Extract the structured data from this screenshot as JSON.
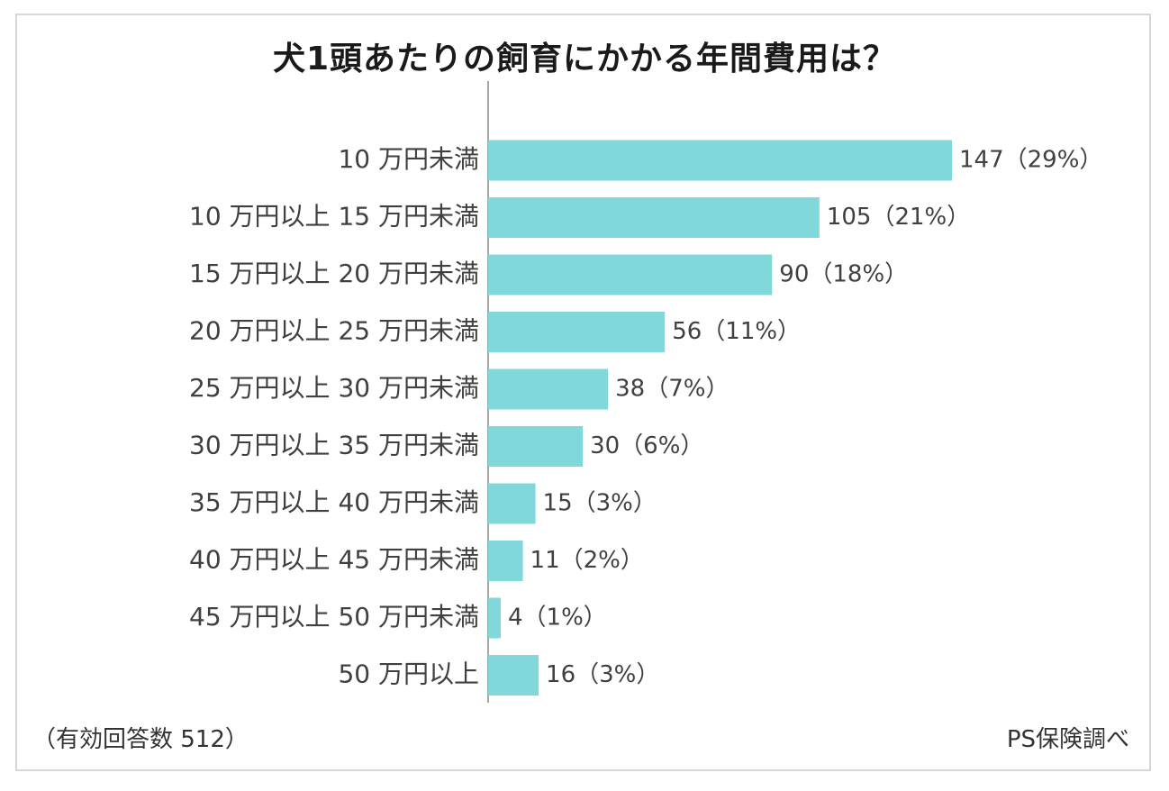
{
  "title": "犬1頭あたりの飼育にかかる年間費用は？",
  "footnote": "（有効回答数 512）",
  "source": "PS保険調べ",
  "colors": {
    "bar": "#80d8db",
    "axis": "#888888",
    "text": "#404040"
  },
  "chart_data": {
    "type": "bar",
    "orientation": "horizontal",
    "title": "犬1頭あたりの飼育にかかる年間費用は？",
    "categories": [
      "10 万円未満",
      "10 万円以上 15 万円未満",
      "15 万円以上 20 万円未満",
      "20 万円以上 25 万円未満",
      "25 万円以上 30 万円未満",
      "30 万円以上 35 万円未満",
      "35 万円以上 40 万円未満",
      "40 万円以上 45 万円未満",
      "45 万円以上 50 万円未満",
      "50 万円以上"
    ],
    "values": [
      147,
      105,
      90,
      56,
      38,
      30,
      15,
      11,
      4,
      16
    ],
    "percentages": [
      "29%",
      "21%",
      "18%",
      "11%",
      "7%",
      "6%",
      "3%",
      "2%",
      "1%",
      "3%"
    ],
    "value_labels": [
      "147（29%）",
      "105（21%）",
      "90（18%）",
      "56（11%）",
      "38（7%）",
      "30（6%）",
      "15（3%）",
      "11（2%）",
      "4（1%）",
      "16（3%）"
    ],
    "xlim": [
      0,
      147
    ],
    "grid": false,
    "legend": "none"
  }
}
